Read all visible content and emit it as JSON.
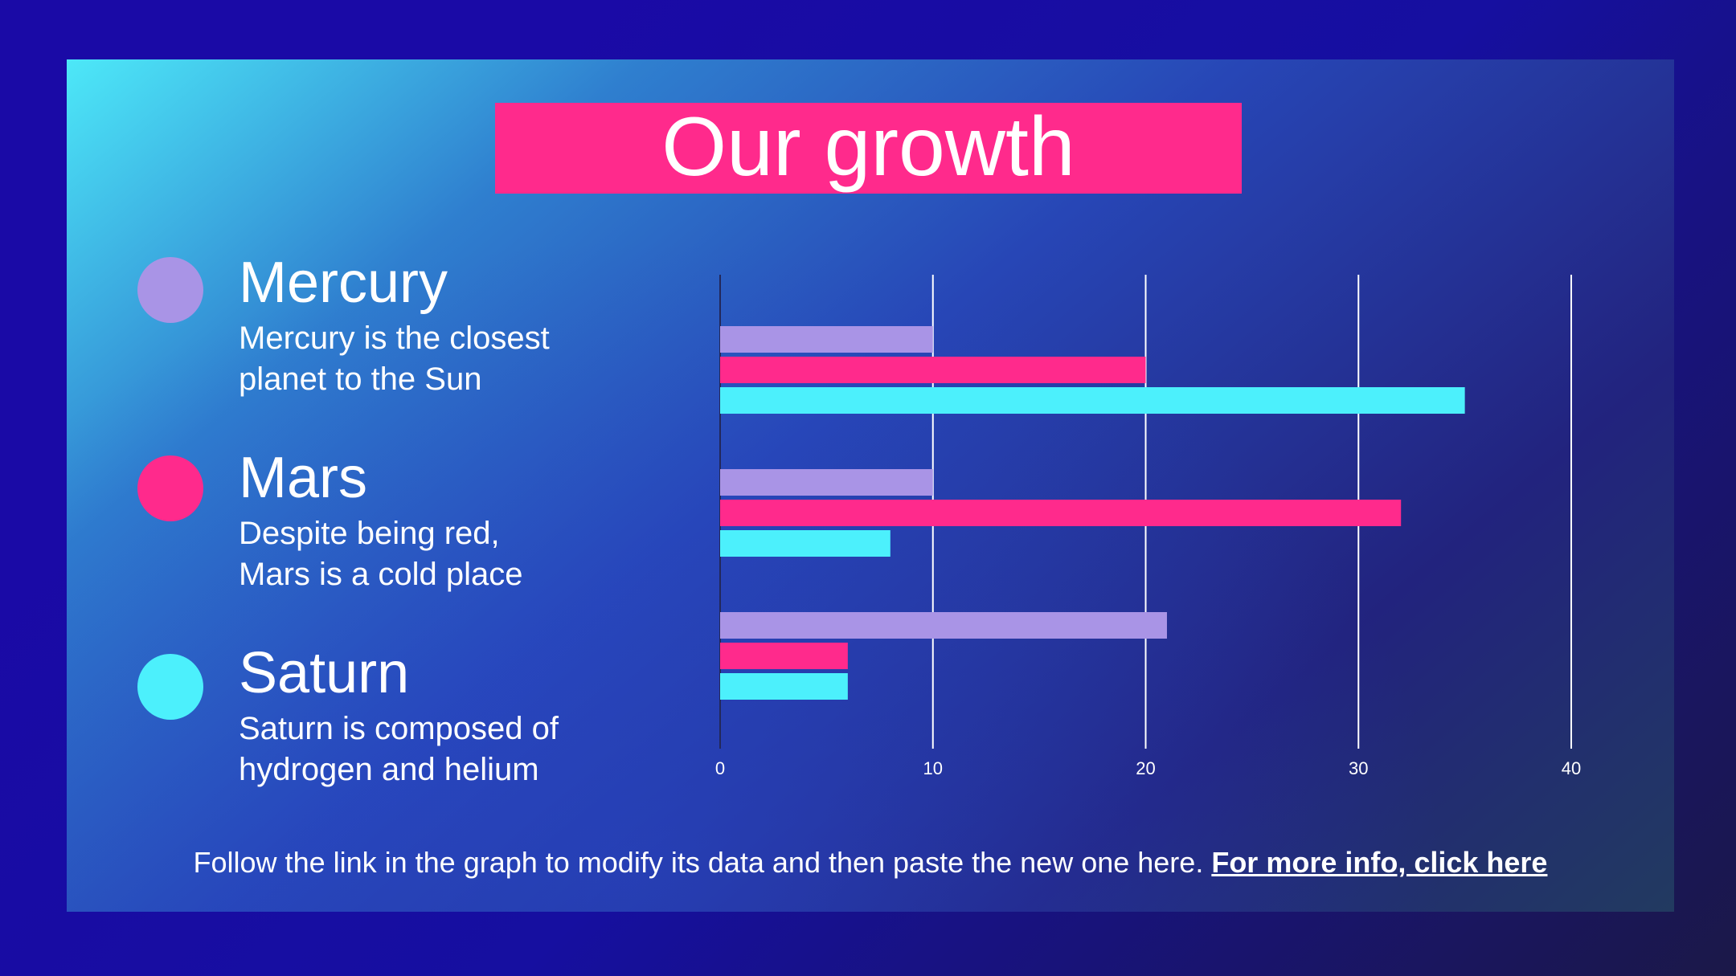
{
  "title": "Our growth",
  "legend": [
    {
      "name": "Mercury",
      "line1": "Mercury is the closest",
      "line2": "planet to the Sun",
      "color": "#a994e6"
    },
    {
      "name": "Mars",
      "line1": "Despite being red,",
      "line2": "Mars is a cold place",
      "color": "#ff2a8c"
    },
    {
      "name": "Saturn",
      "line1": "Saturn is composed of",
      "line2": "hydrogen and helium",
      "color": "#4cf0fc"
    }
  ],
  "footer": {
    "text": "Follow the link in the graph to modify its data and then paste the new one here. ",
    "link": "For more info, click here"
  },
  "chart_data": {
    "type": "bar",
    "orientation": "horizontal",
    "xlim": [
      0,
      40
    ],
    "xticks": [
      "0",
      "10",
      "20",
      "30",
      "40"
    ],
    "grid": true,
    "groups": [
      {
        "values": [
          10,
          20,
          35
        ]
      },
      {
        "values": [
          10,
          32,
          8
        ]
      },
      {
        "values": [
          21,
          6,
          6
        ]
      }
    ],
    "series_colors": [
      "#a994e6",
      "#ff2a8c",
      "#4cf0fc"
    ]
  }
}
